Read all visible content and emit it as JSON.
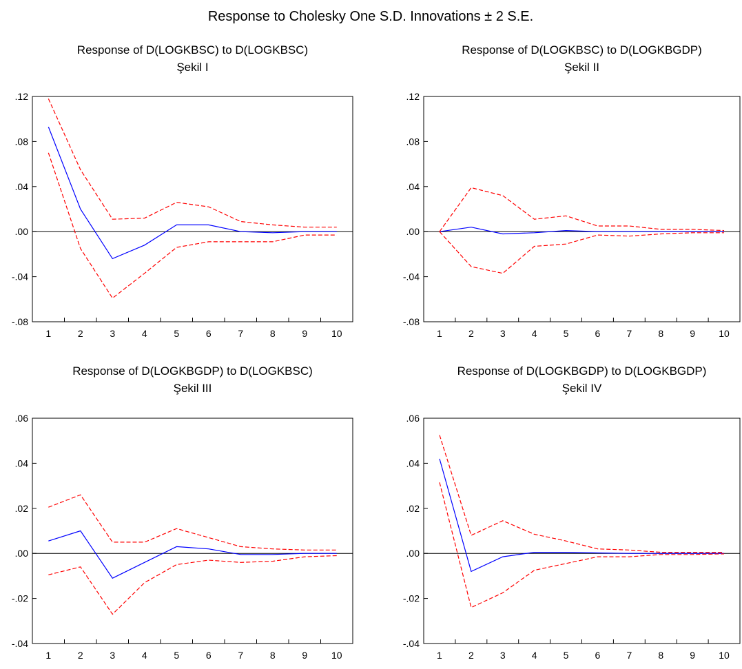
{
  "figure_title": "Response to Cholesky One S.D. Innovations ± 2 S.E.",
  "colors": {
    "response": "#0000ff",
    "bands": "#ff0000",
    "axis": "#000000",
    "zero_line": "#000000"
  },
  "chart_data": [
    {
      "type": "line",
      "title": "Response of D(LOGKBSC) to D(LOGKBSC)",
      "subtitle": "Şekil I",
      "x": [
        1,
        2,
        3,
        4,
        5,
        6,
        7,
        8,
        9,
        10
      ],
      "x_tick_labels": [
        "1",
        "2",
        "3",
        "4",
        "5",
        "6",
        "7",
        "8",
        "9",
        "10"
      ],
      "ylim": [
        -0.08,
        0.12
      ],
      "y_ticks": [
        -0.08,
        -0.04,
        0.0,
        0.04,
        0.08,
        0.12
      ],
      "y_tick_labels": [
        "-.08",
        "-.04",
        ".00",
        ".04",
        ".08",
        ".12"
      ],
      "series": [
        {
          "role": "response",
          "values": [
            0.093,
            0.02,
            -0.024,
            -0.012,
            0.006,
            0.006,
            0.0,
            -0.001,
            0.0,
            0.0
          ]
        },
        {
          "role": "upper",
          "values": [
            0.118,
            0.055,
            0.011,
            0.012,
            0.026,
            0.022,
            0.009,
            0.006,
            0.004,
            0.004
          ]
        },
        {
          "role": "lower",
          "values": [
            0.07,
            -0.015,
            -0.059,
            -0.037,
            -0.014,
            -0.009,
            -0.009,
            -0.009,
            -0.003,
            -0.003
          ]
        }
      ]
    },
    {
      "type": "line",
      "title": "Response of D(LOGKBSC) to D(LOGKBGDP)",
      "subtitle": "Şekil II",
      "x": [
        1,
        2,
        3,
        4,
        5,
        6,
        7,
        8,
        9,
        10
      ],
      "x_tick_labels": [
        "1",
        "2",
        "3",
        "4",
        "5",
        "6",
        "7",
        "8",
        "9",
        "10"
      ],
      "ylim": [
        -0.08,
        0.12
      ],
      "y_ticks": [
        -0.08,
        -0.04,
        0.0,
        0.04,
        0.08,
        0.12
      ],
      "y_tick_labels": [
        "-.08",
        "-.04",
        ".00",
        ".04",
        ".08",
        ".12"
      ],
      "series": [
        {
          "role": "response",
          "values": [
            0.0,
            0.004,
            -0.002,
            -0.001,
            0.001,
            0.0,
            0.0,
            0.0,
            0.0,
            0.0
          ]
        },
        {
          "role": "upper",
          "values": [
            0.0,
            0.039,
            0.032,
            0.011,
            0.014,
            0.005,
            0.005,
            0.002,
            0.002,
            0.001
          ]
        },
        {
          "role": "lower",
          "values": [
            0.0,
            -0.031,
            -0.037,
            -0.013,
            -0.011,
            -0.003,
            -0.004,
            -0.002,
            -0.001,
            -0.001
          ]
        }
      ]
    },
    {
      "type": "line",
      "title": "Response of D(LOGKBGDP) to D(LOGKBSC)",
      "subtitle": "Şekil III",
      "x": [
        1,
        2,
        3,
        4,
        5,
        6,
        7,
        8,
        9,
        10
      ],
      "x_tick_labels": [
        "1",
        "2",
        "3",
        "4",
        "5",
        "6",
        "7",
        "8",
        "9",
        "10"
      ],
      "ylim": [
        -0.04,
        0.06
      ],
      "y_ticks": [
        -0.04,
        -0.02,
        0.0,
        0.02,
        0.04,
        0.06
      ],
      "y_tick_labels": [
        "-.04",
        "-.02",
        ".00",
        ".02",
        ".04",
        ".06"
      ],
      "series": [
        {
          "role": "response",
          "values": [
            0.0055,
            0.01,
            -0.011,
            -0.004,
            0.003,
            0.002,
            -0.0005,
            -0.0005,
            0.0,
            0.0
          ]
        },
        {
          "role": "upper",
          "values": [
            0.0205,
            0.026,
            0.005,
            0.005,
            0.011,
            0.007,
            0.003,
            0.002,
            0.0015,
            0.0015
          ]
        },
        {
          "role": "lower",
          "values": [
            -0.0095,
            -0.006,
            -0.027,
            -0.013,
            -0.005,
            -0.003,
            -0.004,
            -0.0035,
            -0.0015,
            -0.001
          ]
        }
      ]
    },
    {
      "type": "line",
      "title": "Response of D(LOGKBGDP) to D(LOGKBGDP)",
      "subtitle": "Şekil IV",
      "x": [
        1,
        2,
        3,
        4,
        5,
        6,
        7,
        8,
        9,
        10
      ],
      "x_tick_labels": [
        "1",
        "2",
        "3",
        "4",
        "5",
        "6",
        "7",
        "8",
        "9",
        "10"
      ],
      "ylim": [
        -0.04,
        0.06
      ],
      "y_ticks": [
        -0.04,
        -0.02,
        0.0,
        0.02,
        0.04,
        0.06
      ],
      "y_tick_labels": [
        "-.04",
        "-.02",
        ".00",
        ".02",
        ".04",
        ".06"
      ],
      "series": [
        {
          "role": "response",
          "values": [
            0.042,
            -0.008,
            -0.0015,
            0.0005,
            0.0005,
            0.0002,
            0.0,
            0.0,
            0.0,
            0.0
          ]
        },
        {
          "role": "upper",
          "values": [
            0.0525,
            0.008,
            0.0145,
            0.0085,
            0.0055,
            0.002,
            0.0015,
            0.0005,
            0.0005,
            0.0005
          ]
        },
        {
          "role": "lower",
          "values": [
            0.0315,
            -0.024,
            -0.0175,
            -0.0075,
            -0.0045,
            -0.0015,
            -0.0015,
            -0.0005,
            -0.0005,
            -0.0002
          ]
        }
      ]
    }
  ]
}
